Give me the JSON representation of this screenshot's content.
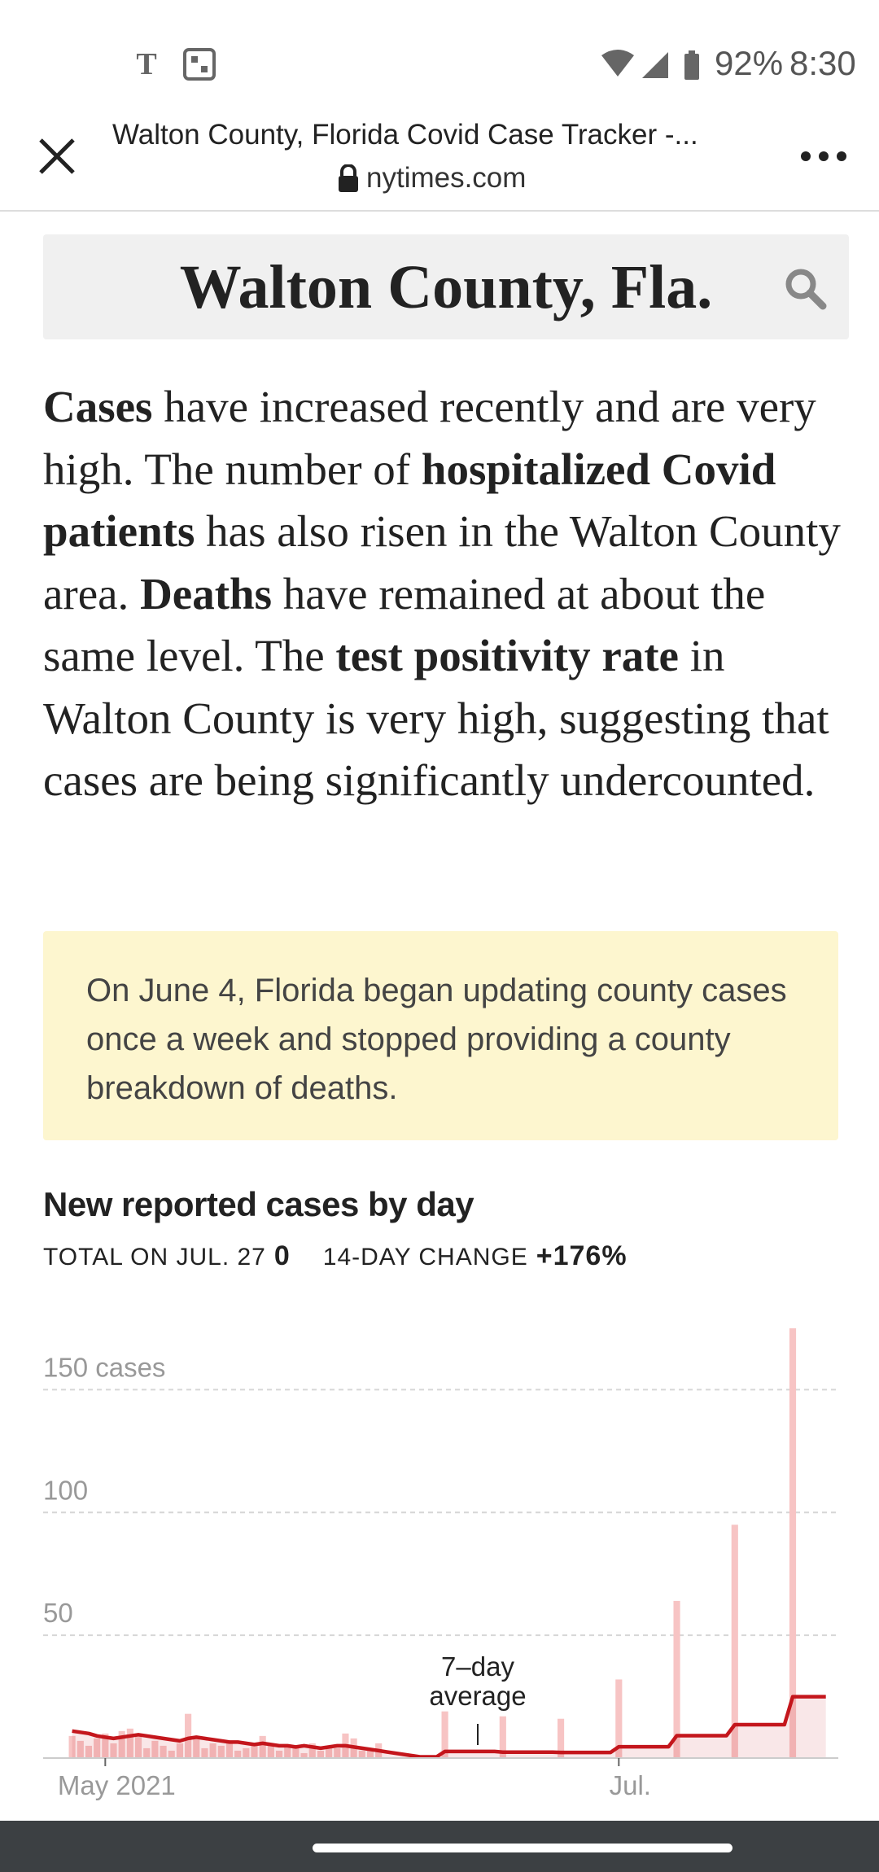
{
  "status_bar": {
    "battery": "92%",
    "time": "8:30"
  },
  "browser": {
    "title": "Walton County, Florida Covid Case Tracker -...",
    "domain": "nytimes.com"
  },
  "heading": "Walton County, Fla.",
  "summary": [
    {
      "text": "Cases",
      "bold": true
    },
    {
      "text": " have increased recently and are very high. The number of ",
      "bold": false
    },
    {
      "text": "hospitalized Covid patients",
      "bold": true
    },
    {
      "text": " has also risen in the Walton County area. ",
      "bold": false
    },
    {
      "text": "Deaths",
      "bold": true
    },
    {
      "text": " have remained at about the same level. The ",
      "bold": false
    },
    {
      "text": "test positivity rate",
      "bold": true
    },
    {
      "text": " in Walton County is very high, suggesting that cases are being significantly undercounted.",
      "bold": false
    }
  ],
  "note": "On June 4, Florida began updating county cases once a week and stopped providing a county breakdown of deaths.",
  "chart_data": {
    "type": "bar",
    "title": "New reported cases by day",
    "stats": [
      {
        "label": "TOTAL ON JUL. 27",
        "value": "0"
      },
      {
        "label": "14-DAY CHANGE",
        "value": "+176%"
      }
    ],
    "categories": [
      null,
      null,
      null,
      null,
      null,
      null,
      null,
      "May 2021",
      null,
      null,
      null,
      null,
      null,
      null,
      null,
      null,
      null,
      null,
      null,
      null,
      null,
      null,
      null,
      null,
      null,
      null,
      null,
      null,
      null,
      null,
      null,
      null,
      null,
      null,
      null,
      null,
      null,
      null,
      null,
      null,
      null,
      null,
      null,
      null,
      null,
      null,
      null,
      null,
      null,
      null,
      null,
      null,
      null,
      null,
      null,
      null,
      null,
      null,
      null,
      null,
      null,
      null,
      null,
      null,
      null,
      null,
      null,
      null,
      null,
      "Jul.",
      null,
      null,
      null,
      null,
      null,
      null,
      null,
      null,
      null,
      null,
      null,
      null,
      null,
      null,
      null,
      null,
      null,
      null,
      null,
      null,
      null,
      null,
      null,
      null,
      null,
      null
    ],
    "series": [
      {
        "type": "bar",
        "color": "#f7c4c4",
        "values": [
          null,
          null,
          null,
          9,
          7,
          5,
          8,
          10,
          6,
          11,
          12,
          9,
          4,
          7,
          5,
          3,
          6,
          18,
          8,
          4,
          6,
          5,
          7,
          3,
          4,
          5,
          9,
          6,
          3,
          5,
          4,
          2,
          6,
          3,
          5,
          4,
          10,
          8,
          3,
          4,
          6,
          0,
          0,
          0,
          0,
          0,
          0,
          0,
          19,
          0,
          0,
          0,
          0,
          0,
          0,
          17,
          0,
          0,
          0,
          0,
          0,
          0,
          16,
          0,
          0,
          0,
          0,
          0,
          0,
          32,
          0,
          0,
          0,
          0,
          0,
          0,
          64,
          0,
          0,
          0,
          0,
          0,
          0,
          95,
          0,
          0,
          0,
          0,
          0,
          0,
          175,
          0,
          0,
          0,
          0,
          null
        ]
      },
      {
        "name": "7–day average",
        "type": "line",
        "color": "#c4161c",
        "values": [
          null,
          null,
          null,
          11,
          10.5,
          10,
          9,
          8.5,
          8,
          8.5,
          9,
          9.5,
          9,
          8.5,
          8,
          7.5,
          7,
          8,
          8.5,
          8,
          7.5,
          7,
          6.5,
          6.5,
          6,
          5.5,
          6,
          5.5,
          5,
          5,
          4.5,
          5,
          4.5,
          4,
          4.5,
          5,
          5,
          4.5,
          4,
          3.5,
          3,
          2.5,
          2,
          1.5,
          1,
          0.5,
          0.5,
          0.5,
          2.7,
          2.7,
          2.7,
          2.7,
          2.7,
          2.7,
          2.7,
          2.4,
          2.4,
          2.4,
          2.4,
          2.4,
          2.4,
          2.4,
          2.3,
          2.3,
          2.3,
          2.3,
          2.3,
          2.3,
          2.3,
          4.6,
          4.6,
          4.6,
          4.6,
          4.6,
          4.6,
          4.6,
          9.1,
          9.1,
          9.1,
          9.1,
          9.1,
          9.1,
          9.1,
          13.6,
          13.6,
          13.6,
          13.6,
          13.6,
          13.6,
          13.6,
          25,
          25,
          25,
          25,
          25,
          null
        ]
      }
    ],
    "ylim": [
      0,
      175
    ],
    "yticks": [
      50,
      100,
      {
        "value": 150,
        "label": "150 cases"
      }
    ],
    "grid": true
  }
}
